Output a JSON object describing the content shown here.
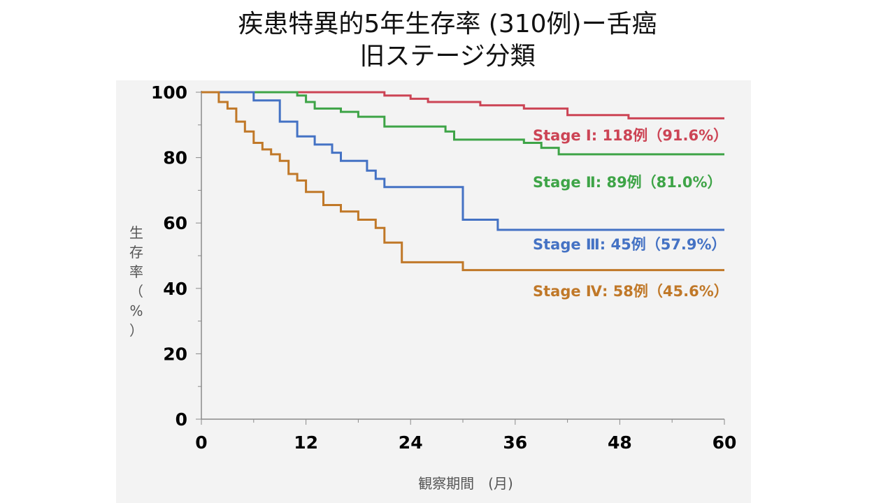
{
  "slide": {
    "title_line1": "疾患特異的5年生存率 (310例)ー舌癌",
    "title_line2": "旧ステージ分類"
  },
  "chart_data": {
    "type": "line",
    "step": true,
    "xlabel": "観察期間　(月)",
    "ylabel": "生存率（%）",
    "xlim": [
      0,
      60
    ],
    "ylim": [
      0,
      100
    ],
    "xticks": [
      0,
      12,
      24,
      36,
      48,
      60
    ],
    "yticks": [
      0,
      20,
      40,
      60,
      80,
      100
    ],
    "grid": false,
    "background": "#f3f3f3",
    "series": [
      {
        "name": "Stage Ⅰ",
        "label": "Stage  Ⅰ: 118例（91.6%）",
        "color": "#cc4455",
        "points": [
          [
            0,
            100
          ],
          [
            21,
            100
          ],
          [
            21,
            99
          ],
          [
            24,
            99
          ],
          [
            24,
            98
          ],
          [
            26,
            98
          ],
          [
            26,
            97
          ],
          [
            32,
            97
          ],
          [
            32,
            96
          ],
          [
            37,
            96
          ],
          [
            37,
            95
          ],
          [
            42,
            95
          ],
          [
            42,
            93
          ],
          [
            49,
            93
          ],
          [
            49,
            92
          ],
          [
            60,
            92
          ]
        ]
      },
      {
        "name": "Stage Ⅱ",
        "label": "Stage Ⅱ: 89例（81.0%）",
        "color": "#3ea447",
        "points": [
          [
            0,
            100
          ],
          [
            11,
            100
          ],
          [
            11,
            99
          ],
          [
            12,
            99
          ],
          [
            12,
            97
          ],
          [
            13,
            97
          ],
          [
            13,
            95
          ],
          [
            16,
            95
          ],
          [
            16,
            94
          ],
          [
            18,
            94
          ],
          [
            18,
            92.5
          ],
          [
            21,
            92.5
          ],
          [
            21,
            89.5
          ],
          [
            28,
            89.5
          ],
          [
            28,
            88
          ],
          [
            29,
            88
          ],
          [
            29,
            85.5
          ],
          [
            37,
            85.5
          ],
          [
            37,
            84.5
          ],
          [
            39,
            84.5
          ],
          [
            39,
            83
          ],
          [
            41,
            83
          ],
          [
            41,
            81
          ],
          [
            60,
            81
          ]
        ]
      },
      {
        "name": "Stage Ⅲ",
        "label": "Stage Ⅲ: 45例（57.9%）",
        "color": "#4472c4",
        "points": [
          [
            0,
            100
          ],
          [
            6,
            100
          ],
          [
            6,
            97.5
          ],
          [
            9,
            97.5
          ],
          [
            9,
            91
          ],
          [
            11,
            91
          ],
          [
            11,
            86.5
          ],
          [
            13,
            86.5
          ],
          [
            13,
            84
          ],
          [
            15,
            84
          ],
          [
            15,
            81.5
          ],
          [
            16,
            81.5
          ],
          [
            16,
            79
          ],
          [
            19,
            79
          ],
          [
            19,
            76
          ],
          [
            20,
            76
          ],
          [
            20,
            73.5
          ],
          [
            21,
            73.5
          ],
          [
            21,
            71
          ],
          [
            30,
            71
          ],
          [
            30,
            61
          ],
          [
            34,
            61
          ],
          [
            34,
            57.9
          ],
          [
            60,
            57.9
          ]
        ]
      },
      {
        "name": "Stage Ⅳ",
        "label": "Stage Ⅳ: 58例（45.6%）",
        "color": "#c07828",
        "points": [
          [
            0,
            100
          ],
          [
            2,
            100
          ],
          [
            2,
            97
          ],
          [
            3,
            97
          ],
          [
            3,
            95
          ],
          [
            4,
            95
          ],
          [
            4,
            91
          ],
          [
            5,
            91
          ],
          [
            5,
            88
          ],
          [
            6,
            88
          ],
          [
            6,
            84.5
          ],
          [
            7,
            84.5
          ],
          [
            7,
            82.5
          ],
          [
            8,
            82.5
          ],
          [
            8,
            81
          ],
          [
            9,
            81
          ],
          [
            9,
            79
          ],
          [
            10,
            79
          ],
          [
            10,
            75
          ],
          [
            11,
            75
          ],
          [
            11,
            73
          ],
          [
            12,
            73
          ],
          [
            12,
            69.5
          ],
          [
            14,
            69.5
          ],
          [
            14,
            65.5
          ],
          [
            16,
            65.5
          ],
          [
            16,
            63.5
          ],
          [
            18,
            63.5
          ],
          [
            18,
            61
          ],
          [
            20,
            61
          ],
          [
            20,
            58.5
          ],
          [
            21,
            58.5
          ],
          [
            21,
            54
          ],
          [
            23,
            54
          ],
          [
            23,
            48
          ],
          [
            30,
            48
          ],
          [
            30,
            45.6
          ],
          [
            60,
            45.6
          ]
        ]
      }
    ]
  }
}
